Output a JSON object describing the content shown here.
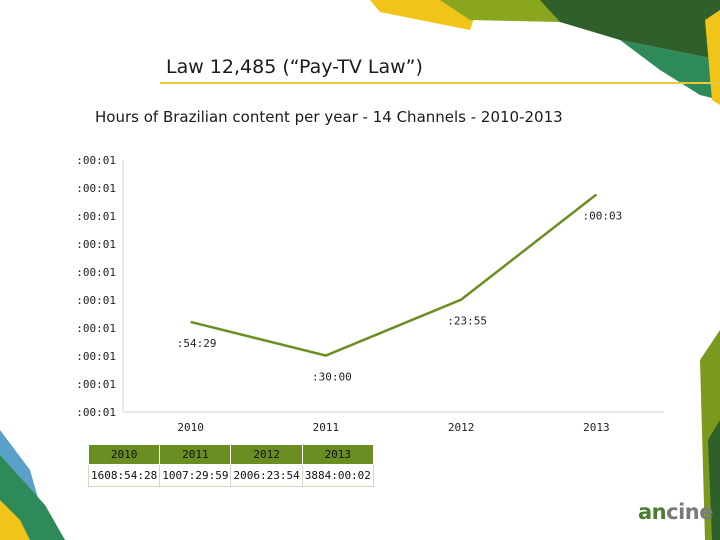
{
  "slide": {
    "title": "Law 12,485 (“Pay-TV Law”)",
    "subtitle": "Hours of Brazilian content per year - 14 Channels - 2010-2013"
  },
  "colors": {
    "line": "#6b8e23",
    "title_rule": "#e9c93a",
    "table_header": "#6b8e23",
    "deco_dark_green": "#2f5f2a",
    "deco_olive": "#7b9a1d",
    "deco_yellow": "#f0c419",
    "deco_teal": "#2f8a5a",
    "deco_blue": "#5aa0c8"
  },
  "chart_data": {
    "type": "line",
    "categories": [
      "2010",
      "2011",
      "2012",
      "2013"
    ],
    "values": [
      1608.908,
      1007.5,
      2006.398,
      3884.001
    ],
    "y_tick_labels": [
      ":00:01",
      ":00:01",
      ":00:01",
      ":00:01",
      ":00:01",
      ":00:01",
      ":00:01",
      ":00:01",
      ":00:01",
      ":00:01"
    ],
    "data_labels": [
      ":54:29",
      ":30:00",
      ":23:55",
      ":00:03"
    ],
    "ylim": [
      0,
      4500
    ],
    "grid": false,
    "legend": "none",
    "xlabel": "",
    "ylabel": ""
  },
  "data_table": {
    "headers": [
      "2010",
      "2011",
      "2012",
      "2013"
    ],
    "values": [
      "1608:54:28",
      "1007:29:59",
      "2006:23:54",
      "3884:00:02"
    ]
  },
  "logo": {
    "part1": "an",
    "part2": "cine"
  }
}
